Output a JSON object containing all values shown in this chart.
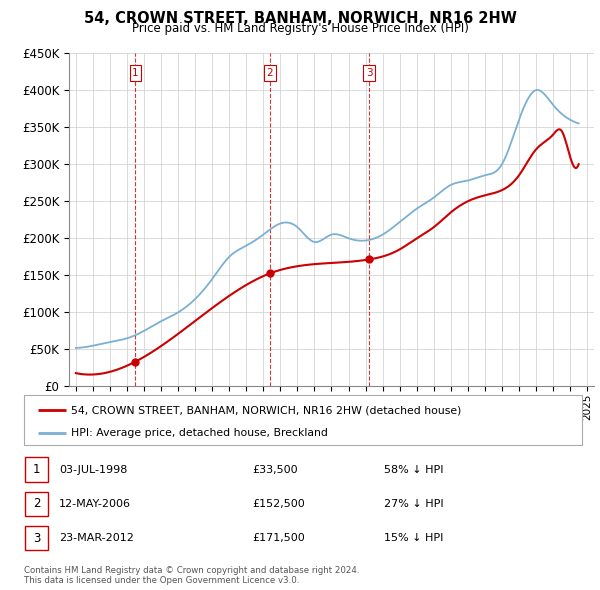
{
  "title": "54, CROWN STREET, BANHAM, NORWICH, NR16 2HW",
  "subtitle": "Price paid vs. HM Land Registry's House Price Index (HPI)",
  "sale_color": "#cc0000",
  "hpi_color": "#7ab0d4",
  "grid_color": "#cccccc",
  "transactions": [
    {
      "num": 1,
      "date": "03-JUL-1998",
      "year_float": 1998.5,
      "price": 33500,
      "pct": "58% ↓ HPI"
    },
    {
      "num": 2,
      "date": "12-MAY-2006",
      "year_float": 2006.37,
      "price": 152500,
      "pct": "27% ↓ HPI"
    },
    {
      "num": 3,
      "date": "23-MAR-2012",
      "year_float": 2012.22,
      "price": 171500,
      "pct": "15% ↓ HPI"
    }
  ],
  "legend_label_sale": "54, CROWN STREET, BANHAM, NORWICH, NR16 2HW (detached house)",
  "legend_label_hpi": "HPI: Average price, detached house, Breckland",
  "footer": "Contains HM Land Registry data © Crown copyright and database right 2024.\nThis data is licensed under the Open Government Licence v3.0.",
  "ylim": [
    0,
    450000
  ],
  "yticks": [
    0,
    50000,
    100000,
    150000,
    200000,
    250000,
    300000,
    350000,
    400000,
    450000
  ],
  "hpi_years": [
    1995,
    1996,
    1997,
    1998,
    1999,
    2000,
    2001,
    2002,
    2003,
    2004,
    2005,
    2006,
    2007,
    2008,
    2009,
    2010,
    2011,
    2012,
    2013,
    2014,
    2015,
    2016,
    2017,
    2018,
    2019,
    2020,
    2021,
    2022,
    2023,
    2024,
    2024.5
  ],
  "hpi_values": [
    52000,
    55000,
    60000,
    65000,
    75000,
    88000,
    100000,
    118000,
    145000,
    175000,
    190000,
    205000,
    220000,
    215000,
    195000,
    205000,
    200000,
    197000,
    205000,
    222000,
    240000,
    255000,
    272000,
    278000,
    285000,
    300000,
    360000,
    400000,
    380000,
    360000,
    355000
  ],
  "sale_years": [
    1995,
    1998.5,
    2006.37,
    2012.22,
    2014,
    2015,
    2016,
    2017,
    2018,
    2019,
    2020,
    2021,
    2022,
    2023,
    2023.5,
    2024,
    2024.5
  ],
  "sale_values": [
    18000,
    33500,
    152500,
    171500,
    185000,
    200000,
    215000,
    235000,
    250000,
    258000,
    265000,
    285000,
    320000,
    340000,
    345000,
    310000,
    300000
  ]
}
